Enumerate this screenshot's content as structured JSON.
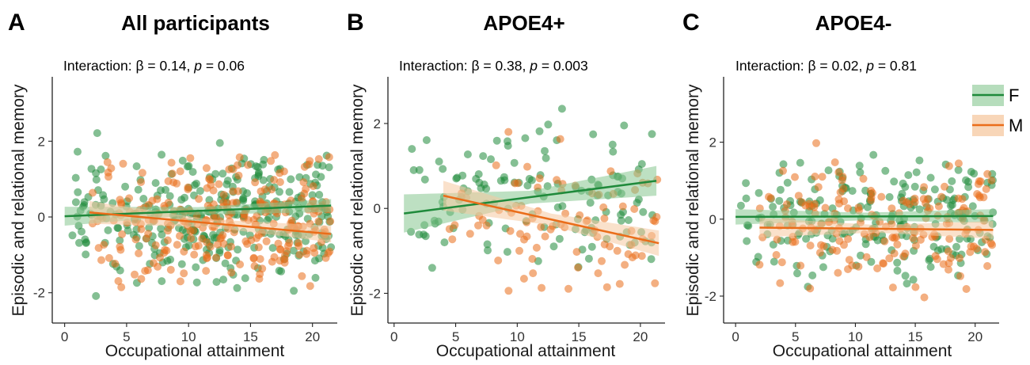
{
  "legend": {
    "items": [
      {
        "label": "F",
        "color": "#1f8a3b",
        "band": "#86c690"
      },
      {
        "label": "M",
        "color": "#ea6d1a",
        "band": "#f6c8a0"
      }
    ],
    "position": "top-right"
  },
  "chart_data": [
    {
      "type": "scatter",
      "panel": "A",
      "title": "All participants",
      "subtitle": {
        "prefix": "Interaction: β = 0.14, ",
        "p_symbol": "p",
        "suffix": " = 0.06"
      },
      "xlabel": "Occupational attainment",
      "ylabel": "Episodic and relational memory",
      "xlim": [
        -1,
        22
      ],
      "ylim": [
        -2.8,
        3.7
      ],
      "xticks": [
        0,
        5,
        10,
        15,
        20
      ],
      "yticks": [
        -2,
        0,
        2
      ],
      "grid": false,
      "series": [
        {
          "name": "F",
          "n": 330,
          "x_range": [
            0,
            21.5
          ],
          "fit": {
            "x": [
              0,
              21.5
            ],
            "y": [
              0.02,
              0.3
            ]
          },
          "ci_halfwidth": [
            0.25,
            0.1,
            0.17
          ],
          "points_seed": 11,
          "y_mean": 0.0
        },
        {
          "name": "M",
          "n": 270,
          "x_range": [
            2,
            21.5
          ],
          "fit": {
            "x": [
              2,
              21.5
            ],
            "y": [
              0.12,
              -0.45
            ]
          },
          "ci_halfwidth": [
            0.3,
            0.1,
            0.22
          ],
          "points_seed": 23,
          "y_mean": -0.1
        }
      ]
    },
    {
      "type": "scatter",
      "panel": "B",
      "title": "APOE4+",
      "subtitle": {
        "prefix": "Interaction: β = 0.38, ",
        "p_symbol": "p",
        "suffix": " = 0.003"
      },
      "xlabel": "Occupational attainment",
      "ylabel": "Episodic and relational memory",
      "xlim": [
        -0.5,
        22
      ],
      "ylim": [
        -2.7,
        3.1
      ],
      "xticks": [
        0,
        5,
        10,
        15,
        20
      ],
      "yticks": [
        -2,
        0,
        2
      ],
      "grid": false,
      "series": [
        {
          "name": "F",
          "n": 130,
          "x_range": [
            0.8,
            21.3
          ],
          "fit": {
            "x": [
              0.8,
              21.3
            ],
            "y": [
              -0.12,
              0.65
            ]
          },
          "ci_halfwidth": [
            0.45,
            0.15,
            0.35
          ],
          "points_seed": 37,
          "y_mean": 0.2
        },
        {
          "name": "M",
          "n": 90,
          "x_range": [
            4,
            21.5
          ],
          "fit": {
            "x": [
              4,
              21.5
            ],
            "y": [
              0.3,
              -0.82
            ]
          },
          "ci_halfwidth": [
            0.35,
            0.14,
            0.3
          ],
          "points_seed": 41,
          "y_mean": -0.3
        }
      ]
    },
    {
      "type": "scatter",
      "panel": "C",
      "title": "APOE4-",
      "subtitle": {
        "prefix": "Interaction: β = 0.02, ",
        "p_symbol": "p",
        "suffix": " = 0.81"
      },
      "xlabel": "Occupational attainment",
      "ylabel": "Episodic and relational memory",
      "xlim": [
        -1,
        22
      ],
      "ylim": [
        -2.7,
        3.7
      ],
      "xticks": [
        0,
        5,
        10,
        15,
        20
      ],
      "yticks": [
        -2,
        0,
        2
      ],
      "grid": false,
      "series": [
        {
          "name": "F",
          "n": 210,
          "x_range": [
            0,
            21.5
          ],
          "fit": {
            "x": [
              0,
              21.5
            ],
            "y": [
              0.06,
              0.08
            ]
          },
          "ci_halfwidth": [
            0.2,
            0.1,
            0.18
          ],
          "points_seed": 53,
          "y_mean": 0.1
        },
        {
          "name": "M",
          "n": 180,
          "x_range": [
            2,
            21.5
          ],
          "fit": {
            "x": [
              2,
              21.5
            ],
            "y": [
              -0.22,
              -0.28
            ]
          },
          "ci_halfwidth": [
            0.25,
            0.1,
            0.23
          ],
          "points_seed": 67,
          "y_mean": -0.1
        }
      ]
    }
  ]
}
